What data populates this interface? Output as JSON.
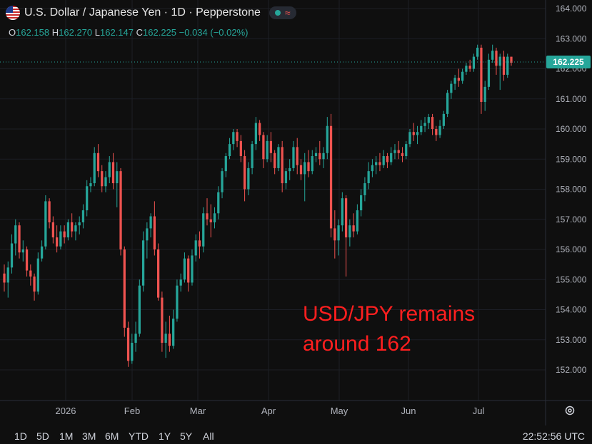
{
  "header": {
    "symbol_title": "U.S. Dollar / Japanese Yen · 1D · Pepperstone",
    "status_icon": "green-dot-icon",
    "wave_icon": "wave-icon"
  },
  "ohlc": {
    "o_key": "O",
    "o": "162.158",
    "h_key": "H",
    "h": "162.270",
    "l_key": "L",
    "l": "162.147",
    "c_key": "C",
    "c": "162.225",
    "change": "−0.034 (−0.02%)"
  },
  "annotation": {
    "line1": "USD/JPY remains",
    "line2": "around 162"
  },
  "range_buttons": [
    "1D",
    "5D",
    "1M",
    "3M",
    "6M",
    "YTD",
    "1Y",
    "5Y",
    "All"
  ],
  "clock": "22:52:56 UTC",
  "colors": {
    "up": "#26a69a",
    "down": "#ef5350",
    "background": "#0f0f0f",
    "last_price_label": "#26a69a",
    "annotation": "#ff1f1f"
  },
  "chart_data": {
    "type": "candlestick",
    "x_ticks": [
      "2026",
      "Feb",
      "Mar",
      "Apr",
      "May",
      "Jun",
      "Jul"
    ],
    "y_ticks": [
      "164.000",
      "163.000",
      "162.000",
      "161.000",
      "160.000",
      "159.000",
      "158.000",
      "157.000",
      "156.000",
      "155.000",
      "154.000",
      "153.000",
      "152.000"
    ],
    "ylim": [
      151.6,
      164.3
    ],
    "last_price": "162.225",
    "candles": [
      [
        155.2,
        155.5,
        154.6,
        154.9
      ],
      [
        154.9,
        155.6,
        154.4,
        155.4
      ],
      [
        155.4,
        156.5,
        155.2,
        156.2
      ],
      [
        156.2,
        157.0,
        155.8,
        156.8
      ],
      [
        156.8,
        156.9,
        155.7,
        155.9
      ],
      [
        155.9,
        156.3,
        155.6,
        156.0
      ],
      [
        156.0,
        156.1,
        155.1,
        155.3
      ],
      [
        155.3,
        155.5,
        154.8,
        155.1
      ],
      [
        155.1,
        155.2,
        154.3,
        154.6
      ],
      [
        154.6,
        155.9,
        154.5,
        155.7
      ],
      [
        155.7,
        156.3,
        155.6,
        156.1
      ],
      [
        156.1,
        157.8,
        156.0,
        157.6
      ],
      [
        157.6,
        157.7,
        156.7,
        156.9
      ],
      [
        156.9,
        157.1,
        156.2,
        156.4
      ],
      [
        156.4,
        156.8,
        155.9,
        156.1
      ],
      [
        156.1,
        156.8,
        156.0,
        156.6
      ],
      [
        156.6,
        156.8,
        156.2,
        156.4
      ],
      [
        156.4,
        157.0,
        156.3,
        156.9
      ],
      [
        156.9,
        157.2,
        156.4,
        156.6
      ],
      [
        156.6,
        156.9,
        156.3,
        156.8
      ],
      [
        156.8,
        157.1,
        156.5,
        156.9
      ],
      [
        156.9,
        157.5,
        156.7,
        157.3
      ],
      [
        157.3,
        158.3,
        157.1,
        158.1
      ],
      [
        158.1,
        158.4,
        157.9,
        158.2
      ],
      [
        158.2,
        159.4,
        158.1,
        159.2
      ],
      [
        159.2,
        159.5,
        158.4,
        158.6
      ],
      [
        158.6,
        158.8,
        157.9,
        158.1
      ],
      [
        158.1,
        158.6,
        157.9,
        158.4
      ],
      [
        158.4,
        159.1,
        158.2,
        158.9
      ],
      [
        158.9,
        159.2,
        158.0,
        158.2
      ],
      [
        158.2,
        158.9,
        157.4,
        158.6
      ],
      [
        158.6,
        158.7,
        155.8,
        156.0
      ],
      [
        156.0,
        156.1,
        153.1,
        153.4
      ],
      [
        153.4,
        153.6,
        152.1,
        152.3
      ],
      [
        152.3,
        153.2,
        152.2,
        152.9
      ],
      [
        152.9,
        153.6,
        152.6,
        153.2
      ],
      [
        153.2,
        155.0,
        153.1,
        154.8
      ],
      [
        154.8,
        156.6,
        154.6,
        156.3
      ],
      [
        156.3,
        156.9,
        155.7,
        156.7
      ],
      [
        156.7,
        157.2,
        156.4,
        157.1
      ],
      [
        157.1,
        157.6,
        155.8,
        156.0
      ],
      [
        156.0,
        156.2,
        154.3,
        154.4
      ],
      [
        154.4,
        154.6,
        152.6,
        152.9
      ],
      [
        152.9,
        153.6,
        152.4,
        153.2
      ],
      [
        153.2,
        153.8,
        152.6,
        152.8
      ],
      [
        152.8,
        154.0,
        152.7,
        153.7
      ],
      [
        153.7,
        155.0,
        153.6,
        154.8
      ],
      [
        154.8,
        155.2,
        154.6,
        155.0
      ],
      [
        155.0,
        155.9,
        154.9,
        155.7
      ],
      [
        155.7,
        155.8,
        154.6,
        154.9
      ],
      [
        154.9,
        156.0,
        154.8,
        155.8
      ],
      [
        155.8,
        156.5,
        155.6,
        156.3
      ],
      [
        156.3,
        156.6,
        155.7,
        156.1
      ],
      [
        156.1,
        157.4,
        155.9,
        157.2
      ],
      [
        157.2,
        157.7,
        156.8,
        157.0
      ],
      [
        157.0,
        157.5,
        156.4,
        156.9
      ],
      [
        156.9,
        157.4,
        156.7,
        157.2
      ],
      [
        157.2,
        158.1,
        157.0,
        157.9
      ],
      [
        157.9,
        158.7,
        157.7,
        158.6
      ],
      [
        158.6,
        159.2,
        158.4,
        159.1
      ],
      [
        159.1,
        159.7,
        159.0,
        159.5
      ],
      [
        159.5,
        160.0,
        159.3,
        159.9
      ],
      [
        159.9,
        160.0,
        159.4,
        159.6
      ],
      [
        159.6,
        159.8,
        158.9,
        159.1
      ],
      [
        159.1,
        159.3,
        157.6,
        158.0
      ],
      [
        158.0,
        158.9,
        157.8,
        158.7
      ],
      [
        158.7,
        159.6,
        158.5,
        159.5
      ],
      [
        159.5,
        160.4,
        159.3,
        160.2
      ],
      [
        160.2,
        160.3,
        159.6,
        159.8
      ],
      [
        159.8,
        159.9,
        158.7,
        159.0
      ],
      [
        159.0,
        159.8,
        158.9,
        159.6
      ],
      [
        159.6,
        159.9,
        158.9,
        159.2
      ],
      [
        159.2,
        159.3,
        158.5,
        158.7
      ],
      [
        158.7,
        159.5,
        158.6,
        159.4
      ],
      [
        159.4,
        159.6,
        157.9,
        158.2
      ],
      [
        158.2,
        158.7,
        158.0,
        158.6
      ],
      [
        158.6,
        159.0,
        158.3,
        158.7
      ],
      [
        158.7,
        159.6,
        158.6,
        159.4
      ],
      [
        159.4,
        159.7,
        158.5,
        158.8
      ],
      [
        158.8,
        159.0,
        158.3,
        158.5
      ],
      [
        158.5,
        159.2,
        157.6,
        158.9
      ],
      [
        158.9,
        159.3,
        158.4,
        158.6
      ],
      [
        158.6,
        159.3,
        158.5,
        159.1
      ],
      [
        159.1,
        159.4,
        158.9,
        159.2
      ],
      [
        159.2,
        159.6,
        158.8,
        159.0
      ],
      [
        159.0,
        159.4,
        158.7,
        159.2
      ],
      [
        159.2,
        160.4,
        159.0,
        160.1
      ],
      [
        160.1,
        160.5,
        156.4,
        156.7
      ],
      [
        156.7,
        157.3,
        155.7,
        156.3
      ],
      [
        156.3,
        157.0,
        155.8,
        156.8
      ],
      [
        156.8,
        157.9,
        156.6,
        157.7
      ],
      [
        157.7,
        157.8,
        155.1,
        156.4
      ],
      [
        156.4,
        157.0,
        156.1,
        156.8
      ],
      [
        156.8,
        157.2,
        156.4,
        156.6
      ],
      [
        156.6,
        157.5,
        156.5,
        157.3
      ],
      [
        157.3,
        158.0,
        157.1,
        157.8
      ],
      [
        157.8,
        158.4,
        157.6,
        158.2
      ],
      [
        158.2,
        158.9,
        158.0,
        158.6
      ],
      [
        158.6,
        159.0,
        158.4,
        158.8
      ],
      [
        158.8,
        159.1,
        158.5,
        158.9
      ],
      [
        158.9,
        159.2,
        158.6,
        158.8
      ],
      [
        158.8,
        159.3,
        158.7,
        159.1
      ],
      [
        159.1,
        159.2,
        158.7,
        158.9
      ],
      [
        158.9,
        159.4,
        158.8,
        159.2
      ],
      [
        159.2,
        159.5,
        159.0,
        159.3
      ],
      [
        159.3,
        159.6,
        159.0,
        159.2
      ],
      [
        159.2,
        159.4,
        158.9,
        159.1
      ],
      [
        159.1,
        159.6,
        159.0,
        159.5
      ],
      [
        159.5,
        160.0,
        159.4,
        159.9
      ],
      [
        159.9,
        160.2,
        159.6,
        159.8
      ],
      [
        159.8,
        160.1,
        159.5,
        159.9
      ],
      [
        159.9,
        160.3,
        159.8,
        160.1
      ],
      [
        160.1,
        160.4,
        159.9,
        160.2
      ],
      [
        160.2,
        160.5,
        160.0,
        160.4
      ],
      [
        160.4,
        160.5,
        159.8,
        160.0
      ],
      [
        160.0,
        160.1,
        159.6,
        159.8
      ],
      [
        159.8,
        160.3,
        159.7,
        160.1
      ],
      [
        160.1,
        160.6,
        160.0,
        160.5
      ],
      [
        160.5,
        161.3,
        160.4,
        161.2
      ],
      [
        161.2,
        161.6,
        161.0,
        161.5
      ],
      [
        161.5,
        161.8,
        161.3,
        161.7
      ],
      [
        161.7,
        162.0,
        161.4,
        161.6
      ],
      [
        161.6,
        162.0,
        161.5,
        161.9
      ],
      [
        161.9,
        162.2,
        161.8,
        162.1
      ],
      [
        162.1,
        162.3,
        161.9,
        162.0
      ],
      [
        162.0,
        162.5,
        161.9,
        162.4
      ],
      [
        162.4,
        162.8,
        162.3,
        162.7
      ],
      [
        162.7,
        162.8,
        160.5,
        160.9
      ],
      [
        160.9,
        161.6,
        160.6,
        161.4
      ],
      [
        161.4,
        162.5,
        161.3,
        162.3
      ],
      [
        162.3,
        162.8,
        162.2,
        162.6
      ],
      [
        162.6,
        162.7,
        161.8,
        162.1
      ],
      [
        162.1,
        162.5,
        161.3,
        162.4
      ],
      [
        162.4,
        162.6,
        161.6,
        161.8
      ],
      [
        161.8,
        162.5,
        161.7,
        162.4
      ],
      [
        162.4,
        162.4,
        162.1,
        162.2
      ]
    ]
  }
}
